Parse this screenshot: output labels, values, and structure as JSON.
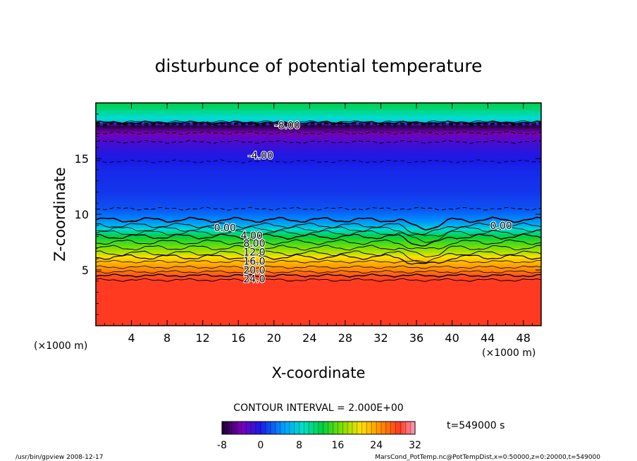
{
  "chart_data": {
    "type": "heatmap",
    "title": "disturbunce of potential temperature",
    "xlabel": "X-coordinate",
    "ylabel": "Z-coordinate",
    "x_unit_left": "(×1000 m)",
    "x_unit_right": "(×1000 m)",
    "xlim": [
      0,
      50
    ],
    "ylim": [
      0,
      20
    ],
    "x_ticks": [
      4,
      8,
      12,
      16,
      20,
      24,
      28,
      32,
      36,
      40,
      44,
      48
    ],
    "x_tick_labels": [
      "4",
      "8",
      "12",
      "16",
      "20",
      "24",
      "28",
      "32",
      "36",
      "40",
      "44",
      "48"
    ],
    "y_ticks": [
      5,
      10,
      15
    ],
    "y_tick_labels": [
      "5",
      "10",
      "15"
    ],
    "contour_labels": [
      {
        "text": "-8.00",
        "x": 21.5,
        "z": 18.0
      },
      {
        "text": "-4.00",
        "x": 18.5,
        "z": 15.3
      },
      {
        "text": "0.00",
        "x": 14.5,
        "z": 8.8
      },
      {
        "text": "0.00",
        "x": 45.5,
        "z": 9.0
      },
      {
        "text": "4.00",
        "x": 17.5,
        "z": 8.1
      },
      {
        "text": "8.00",
        "x": 17.8,
        "z": 7.4
      },
      {
        "text": "12.0",
        "x": 17.8,
        "z": 6.6
      },
      {
        "text": "16.0",
        "x": 17.8,
        "z": 5.8
      },
      {
        "text": "20.0",
        "x": 17.8,
        "z": 5.0
      },
      {
        "text": "24.0",
        "x": 17.8,
        "z": 4.2
      }
    ],
    "profile": {
      "z": [
        0,
        4.0,
        4.1,
        4.5,
        5.0,
        5.5,
        6.0,
        6.5,
        7.0,
        7.5,
        8.0,
        8.5,
        9.0,
        9.5,
        10.5,
        12,
        14,
        15.5,
        16.5,
        17.5,
        18.0,
        18.3,
        20
      ],
      "value": [
        27,
        27,
        26,
        24,
        21,
        19,
        17,
        14,
        12,
        10,
        8,
        5,
        2,
        0,
        -2,
        -3,
        -3.5,
        -4.5,
        -6,
        -8.5,
        -10,
        3,
        8
      ]
    },
    "colorbar": {
      "min": -8,
      "max": 32,
      "ticks": [
        "-8",
        "0",
        "8",
        "16",
        "24",
        "32"
      ]
    },
    "contour_interval_text": "CONTOUR INTERVAL = 2.000E+00",
    "time_text": "t=549000 s",
    "footer_left": "/usr/bin/gpview   2008-12-17",
    "footer_right": "MarsCond_PotTemp.nc@PotTempDist,x=0:50000,z=0:20000,t=549000"
  }
}
